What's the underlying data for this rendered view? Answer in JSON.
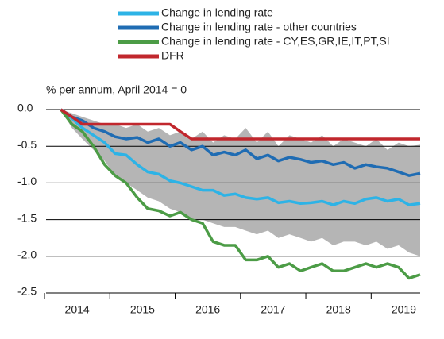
{
  "chart_data": {
    "type": "line",
    "y_axis_label": "% per annum, April 2014 = 0",
    "x": [
      2014.25,
      2014.42,
      2014.58,
      2014.75,
      2014.92,
      2015.08,
      2015.25,
      2015.42,
      2015.58,
      2015.75,
      2015.92,
      2016.08,
      2016.25,
      2016.42,
      2016.58,
      2016.75,
      2016.92,
      2017.08,
      2017.25,
      2017.42,
      2017.58,
      2017.75,
      2017.92,
      2018.08,
      2018.25,
      2018.42,
      2018.58,
      2018.75,
      2018.92,
      2019.08,
      2019.25,
      2019.42,
      2019.58,
      2019.75
    ],
    "band": {
      "color": "#b5b5b5",
      "upper": [
        0,
        -0.05,
        -0.1,
        -0.15,
        -0.2,
        -0.2,
        -0.25,
        -0.2,
        -0.3,
        -0.25,
        -0.35,
        -0.3,
        -0.4,
        -0.3,
        -0.45,
        -0.35,
        -0.4,
        -0.25,
        -0.45,
        -0.3,
        -0.5,
        -0.35,
        -0.4,
        -0.45,
        -0.35,
        -0.5,
        -0.4,
        -0.45,
        -0.5,
        -0.4,
        -0.55,
        -0.45,
        -0.5,
        -0.48
      ],
      "lower": [
        0,
        -0.25,
        -0.4,
        -0.55,
        -0.7,
        -0.9,
        -1.0,
        -1.1,
        -1.2,
        -1.25,
        -1.35,
        -1.4,
        -1.5,
        -1.5,
        -1.55,
        -1.6,
        -1.6,
        -1.65,
        -1.7,
        -1.65,
        -1.75,
        -1.7,
        -1.75,
        -1.8,
        -1.75,
        -1.85,
        -1.8,
        -1.8,
        -1.85,
        -1.8,
        -1.9,
        -1.85,
        -1.95,
        -2.0
      ]
    },
    "series": [
      {
        "name": "Change in lending rate",
        "color": "#2db3e6",
        "values": [
          0,
          -0.12,
          -0.25,
          -0.35,
          -0.45,
          -0.6,
          -0.62,
          -0.75,
          -0.85,
          -0.88,
          -0.97,
          -1.0,
          -1.05,
          -1.1,
          -1.1,
          -1.17,
          -1.15,
          -1.2,
          -1.22,
          -1.2,
          -1.27,
          -1.25,
          -1.28,
          -1.27,
          -1.25,
          -1.3,
          -1.25,
          -1.28,
          -1.22,
          -1.2,
          -1.25,
          -1.22,
          -1.3,
          -1.28
        ]
      },
      {
        "name": "Change in lending rate - other countries",
        "color": "#1f6cb3",
        "values": [
          0,
          -0.1,
          -0.15,
          -0.25,
          -0.3,
          -0.37,
          -0.4,
          -0.38,
          -0.45,
          -0.4,
          -0.5,
          -0.45,
          -0.55,
          -0.5,
          -0.62,
          -0.58,
          -0.62,
          -0.55,
          -0.67,
          -0.62,
          -0.7,
          -0.65,
          -0.68,
          -0.72,
          -0.7,
          -0.75,
          -0.72,
          -0.8,
          -0.75,
          -0.78,
          -0.8,
          -0.85,
          -0.9,
          -0.87
        ]
      },
      {
        "name": "Change in lending rate - CY,ES,GR,IE,IT,PT,SI",
        "color": "#4c9c46",
        "values": [
          0,
          -0.2,
          -0.3,
          -0.5,
          -0.75,
          -0.9,
          -1.0,
          -1.2,
          -1.35,
          -1.38,
          -1.45,
          -1.4,
          -1.5,
          -1.55,
          -1.8,
          -1.85,
          -1.85,
          -2.05,
          -2.05,
          -2.0,
          -2.15,
          -2.1,
          -2.2,
          -2.15,
          -2.1,
          -2.2,
          -2.2,
          -2.15,
          -2.1,
          -2.15,
          -2.1,
          -2.15,
          -2.3,
          -2.25
        ]
      },
      {
        "name": "DFR",
        "color": "#c1272d",
        "values": [
          0,
          -0.1,
          -0.2,
          -0.2,
          -0.2,
          -0.2,
          -0.2,
          -0.2,
          -0.2,
          -0.2,
          -0.2,
          -0.3,
          -0.4,
          -0.4,
          -0.4,
          -0.4,
          -0.4,
          -0.4,
          -0.4,
          -0.4,
          -0.4,
          -0.4,
          -0.4,
          -0.4,
          -0.4,
          -0.4,
          -0.4,
          -0.4,
          -0.4,
          -0.4,
          -0.4,
          -0.4,
          -0.4,
          -0.4
        ]
      }
    ],
    "xlim": [
      2014,
      2019.75
    ],
    "xticks": [
      2014,
      2015,
      2016,
      2017,
      2018,
      2019
    ],
    "ylim": [
      -2.5,
      0
    ],
    "yticks": [
      {
        "value": 0,
        "label": "0.0"
      },
      -0.5,
      {
        "value": -1,
        "label": "-1.0"
      },
      -1.5,
      {
        "value": -2,
        "label": "-2.0"
      },
      -2.5
    ],
    "grid": true
  }
}
